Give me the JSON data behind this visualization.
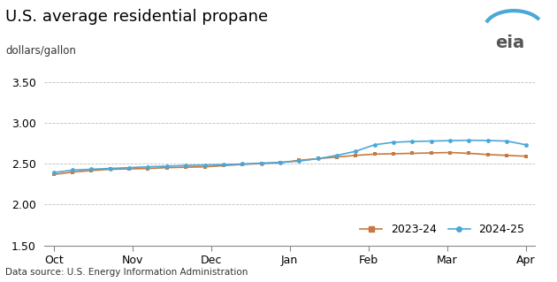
{
  "title": "U.S. average residential propane",
  "ylabel": "dollars/gallon",
  "datasource": "Data source: U.S. Energy Information Administration",
  "ylim": [
    1.5,
    3.5
  ],
  "yticks": [
    1.5,
    2.0,
    2.5,
    3.0,
    3.5
  ],
  "x_labels": [
    "Oct",
    "Nov",
    "Dec",
    "Jan",
    "Feb",
    "Mar",
    "Apr"
  ],
  "series_2023": {
    "label": "2023-24",
    "color": "#C87941",
    "marker": "s",
    "values": [
      2.367,
      2.395,
      2.415,
      2.43,
      2.435,
      2.44,
      2.45,
      2.455,
      2.46,
      2.475,
      2.49,
      2.5,
      2.51,
      2.54,
      2.56,
      2.58,
      2.6,
      2.615,
      2.62,
      2.625,
      2.63,
      2.635,
      2.625,
      2.61,
      2.6,
      2.59
    ]
  },
  "series_2024": {
    "label": "2024-25",
    "color": "#4AA8D8",
    "marker": "o",
    "values": [
      2.39,
      2.42,
      2.43,
      2.44,
      2.45,
      2.46,
      2.468,
      2.475,
      2.482,
      2.488,
      2.495,
      2.505,
      2.515,
      2.53,
      2.56,
      2.6,
      2.65,
      2.73,
      2.76,
      2.77,
      2.775,
      2.78,
      2.785,
      2.782,
      2.775,
      2.73
    ]
  },
  "background_color": "#ffffff",
  "grid_color": "#bbbbbb",
  "title_fontsize": 13,
  "label_fontsize": 8.5,
  "tick_fontsize": 9,
  "legend_fontsize": 9
}
